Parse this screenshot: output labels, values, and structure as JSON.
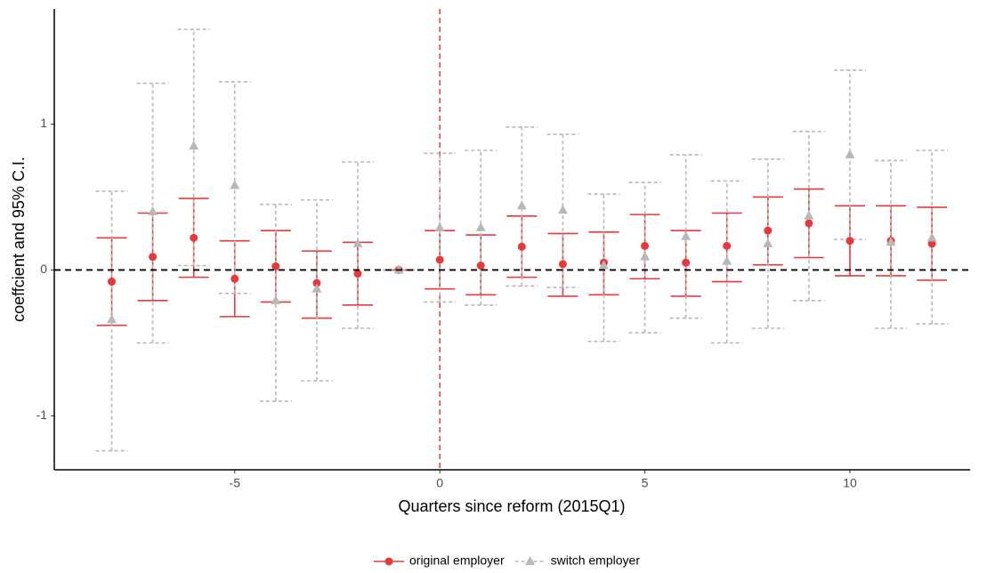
{
  "chart_data": {
    "type": "errorbar",
    "x_label": "Quarters since reform (2015Q1)",
    "y_label": "coeffcient and 95% C.I.",
    "x": [
      -8,
      -7,
      -6,
      -5,
      -4,
      -3,
      -2,
      -1,
      0,
      1,
      2,
      3,
      4,
      5,
      6,
      7,
      8,
      9,
      10,
      11,
      12
    ],
    "series": [
      {
        "name": "original employer",
        "color": "#e8383d",
        "marker": "circle",
        "line_style": "solid",
        "values": [
          -0.08,
          0.09,
          0.22,
          -0.06,
          0.025,
          -0.09,
          -0.025,
          0,
          0.07,
          0.03,
          0.16,
          0.04,
          0.05,
          0.165,
          0.05,
          0.165,
          0.27,
          0.32,
          0.2,
          0.2,
          0.18
        ],
        "lower": [
          -0.38,
          -0.21,
          -0.05,
          -0.32,
          -0.22,
          -0.33,
          -0.24,
          0,
          -0.13,
          -0.17,
          -0.05,
          -0.18,
          -0.17,
          -0.06,
          -0.18,
          -0.08,
          0.035,
          0.085,
          -0.04,
          -0.04,
          -0.07
        ],
        "upper": [
          0.22,
          0.39,
          0.49,
          0.2,
          0.27,
          0.13,
          0.19,
          0,
          0.27,
          0.24,
          0.37,
          0.25,
          0.26,
          0.38,
          0.27,
          0.39,
          0.5,
          0.555,
          0.44,
          0.44,
          0.43
        ]
      },
      {
        "name": "switch employer",
        "color": "#b8b8b8",
        "marker": "triangle",
        "line_style": "dashed",
        "values": [
          -0.34,
          0.4,
          0.85,
          0.58,
          -0.21,
          -0.13,
          0.18,
          0,
          0.29,
          0.29,
          0.44,
          0.41,
          0.03,
          0.09,
          0.23,
          0.06,
          0.18,
          0.37,
          0.79,
          0.19,
          0.22
        ],
        "lower": [
          -1.24,
          -0.5,
          0.03,
          -0.16,
          -0.9,
          -0.76,
          -0.4,
          0,
          -0.22,
          -0.24,
          -0.11,
          -0.12,
          -0.49,
          -0.43,
          -0.33,
          -0.5,
          -0.4,
          -0.21,
          0.21,
          -0.4,
          -0.37
        ],
        "upper": [
          0.54,
          1.28,
          1.65,
          1.29,
          0.45,
          0.48,
          0.74,
          0,
          0.8,
          0.82,
          0.98,
          0.93,
          0.52,
          0.6,
          0.79,
          0.61,
          0.76,
          0.95,
          1.37,
          0.75,
          0.82
        ]
      }
    ],
    "xlim": [
      -9.4,
      12.93
    ],
    "ylim": [
      -1.37,
      1.79
    ],
    "xticks": [
      -5,
      0,
      5,
      10
    ],
    "yticks": [
      -1,
      0,
      1
    ],
    "hline": 0,
    "hline_color": "#000000",
    "vline": 0,
    "vline_color": "#e8383d",
    "legend": "bottom"
  }
}
